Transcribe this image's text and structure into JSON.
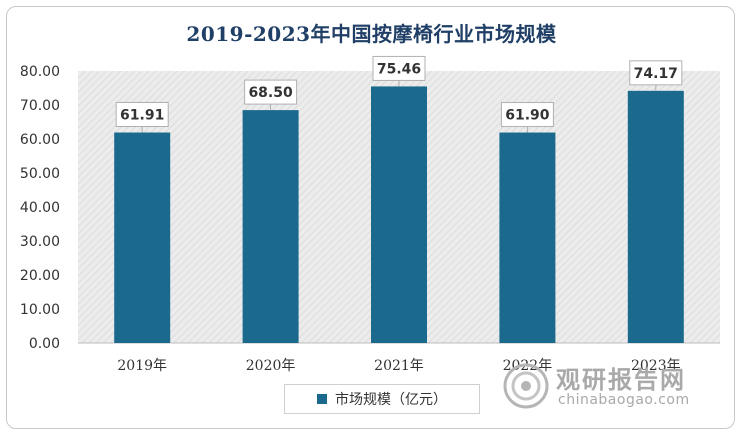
{
  "chart_data": {
    "type": "bar",
    "title": "2019-2023年中国按摩椅行业市场规模",
    "categories": [
      "2019年",
      "2020年",
      "2021年",
      "2022年",
      "2023年"
    ],
    "series": [
      {
        "name": "市场规模（亿元）",
        "values": [
          61.91,
          68.5,
          75.46,
          61.9,
          74.17
        ]
      }
    ],
    "data_labels": [
      "61.91",
      "68.50",
      "75.46",
      "61.90",
      "74.17"
    ],
    "y_tick_labels": [
      "0.00",
      "10.00",
      "20.00",
      "30.00",
      "40.00",
      "50.00",
      "60.00",
      "70.00",
      "80.00"
    ],
    "ylim": [
      0,
      80
    ],
    "xlabel": "",
    "ylabel": "",
    "legend_position": "bottom",
    "grid": false
  },
  "legend": {
    "label": "市场规模（亿元）"
  },
  "watermark": {
    "name": "观研报告网",
    "url": "chinabaogao.com"
  },
  "colors": {
    "bar": "#1b6a8e",
    "title": "#1f3f66",
    "plot_background": "#e9e9e9"
  }
}
